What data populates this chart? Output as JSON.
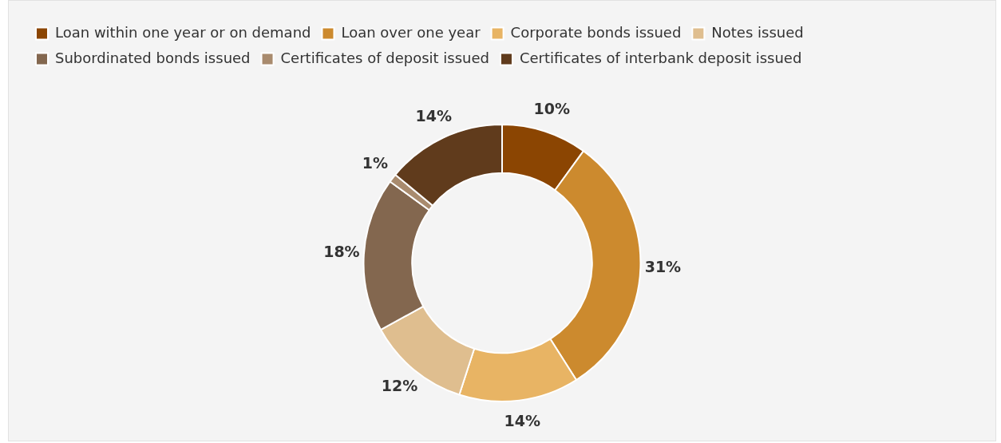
{
  "chart_data": {
    "type": "donut",
    "categories": [
      "Loan within one year or on demand",
      "Loan over one year",
      "Corporate bonds issued",
      "Notes issued",
      "Subordinated bonds issued",
      "Certificates of deposit issued",
      "Certificates of interbank deposit issued"
    ],
    "values": [
      10,
      31,
      14,
      12,
      18,
      1,
      14
    ],
    "colors": [
      "#8b4502",
      "#cc8a2e",
      "#e8b464",
      "#dfbe8f",
      "#83674f",
      "#a98b6e",
      "#603b1c"
    ],
    "value_labels": [
      "10%",
      "31%",
      "14%",
      "12%",
      "18%",
      "1%",
      "14%"
    ],
    "legend": "top left"
  }
}
